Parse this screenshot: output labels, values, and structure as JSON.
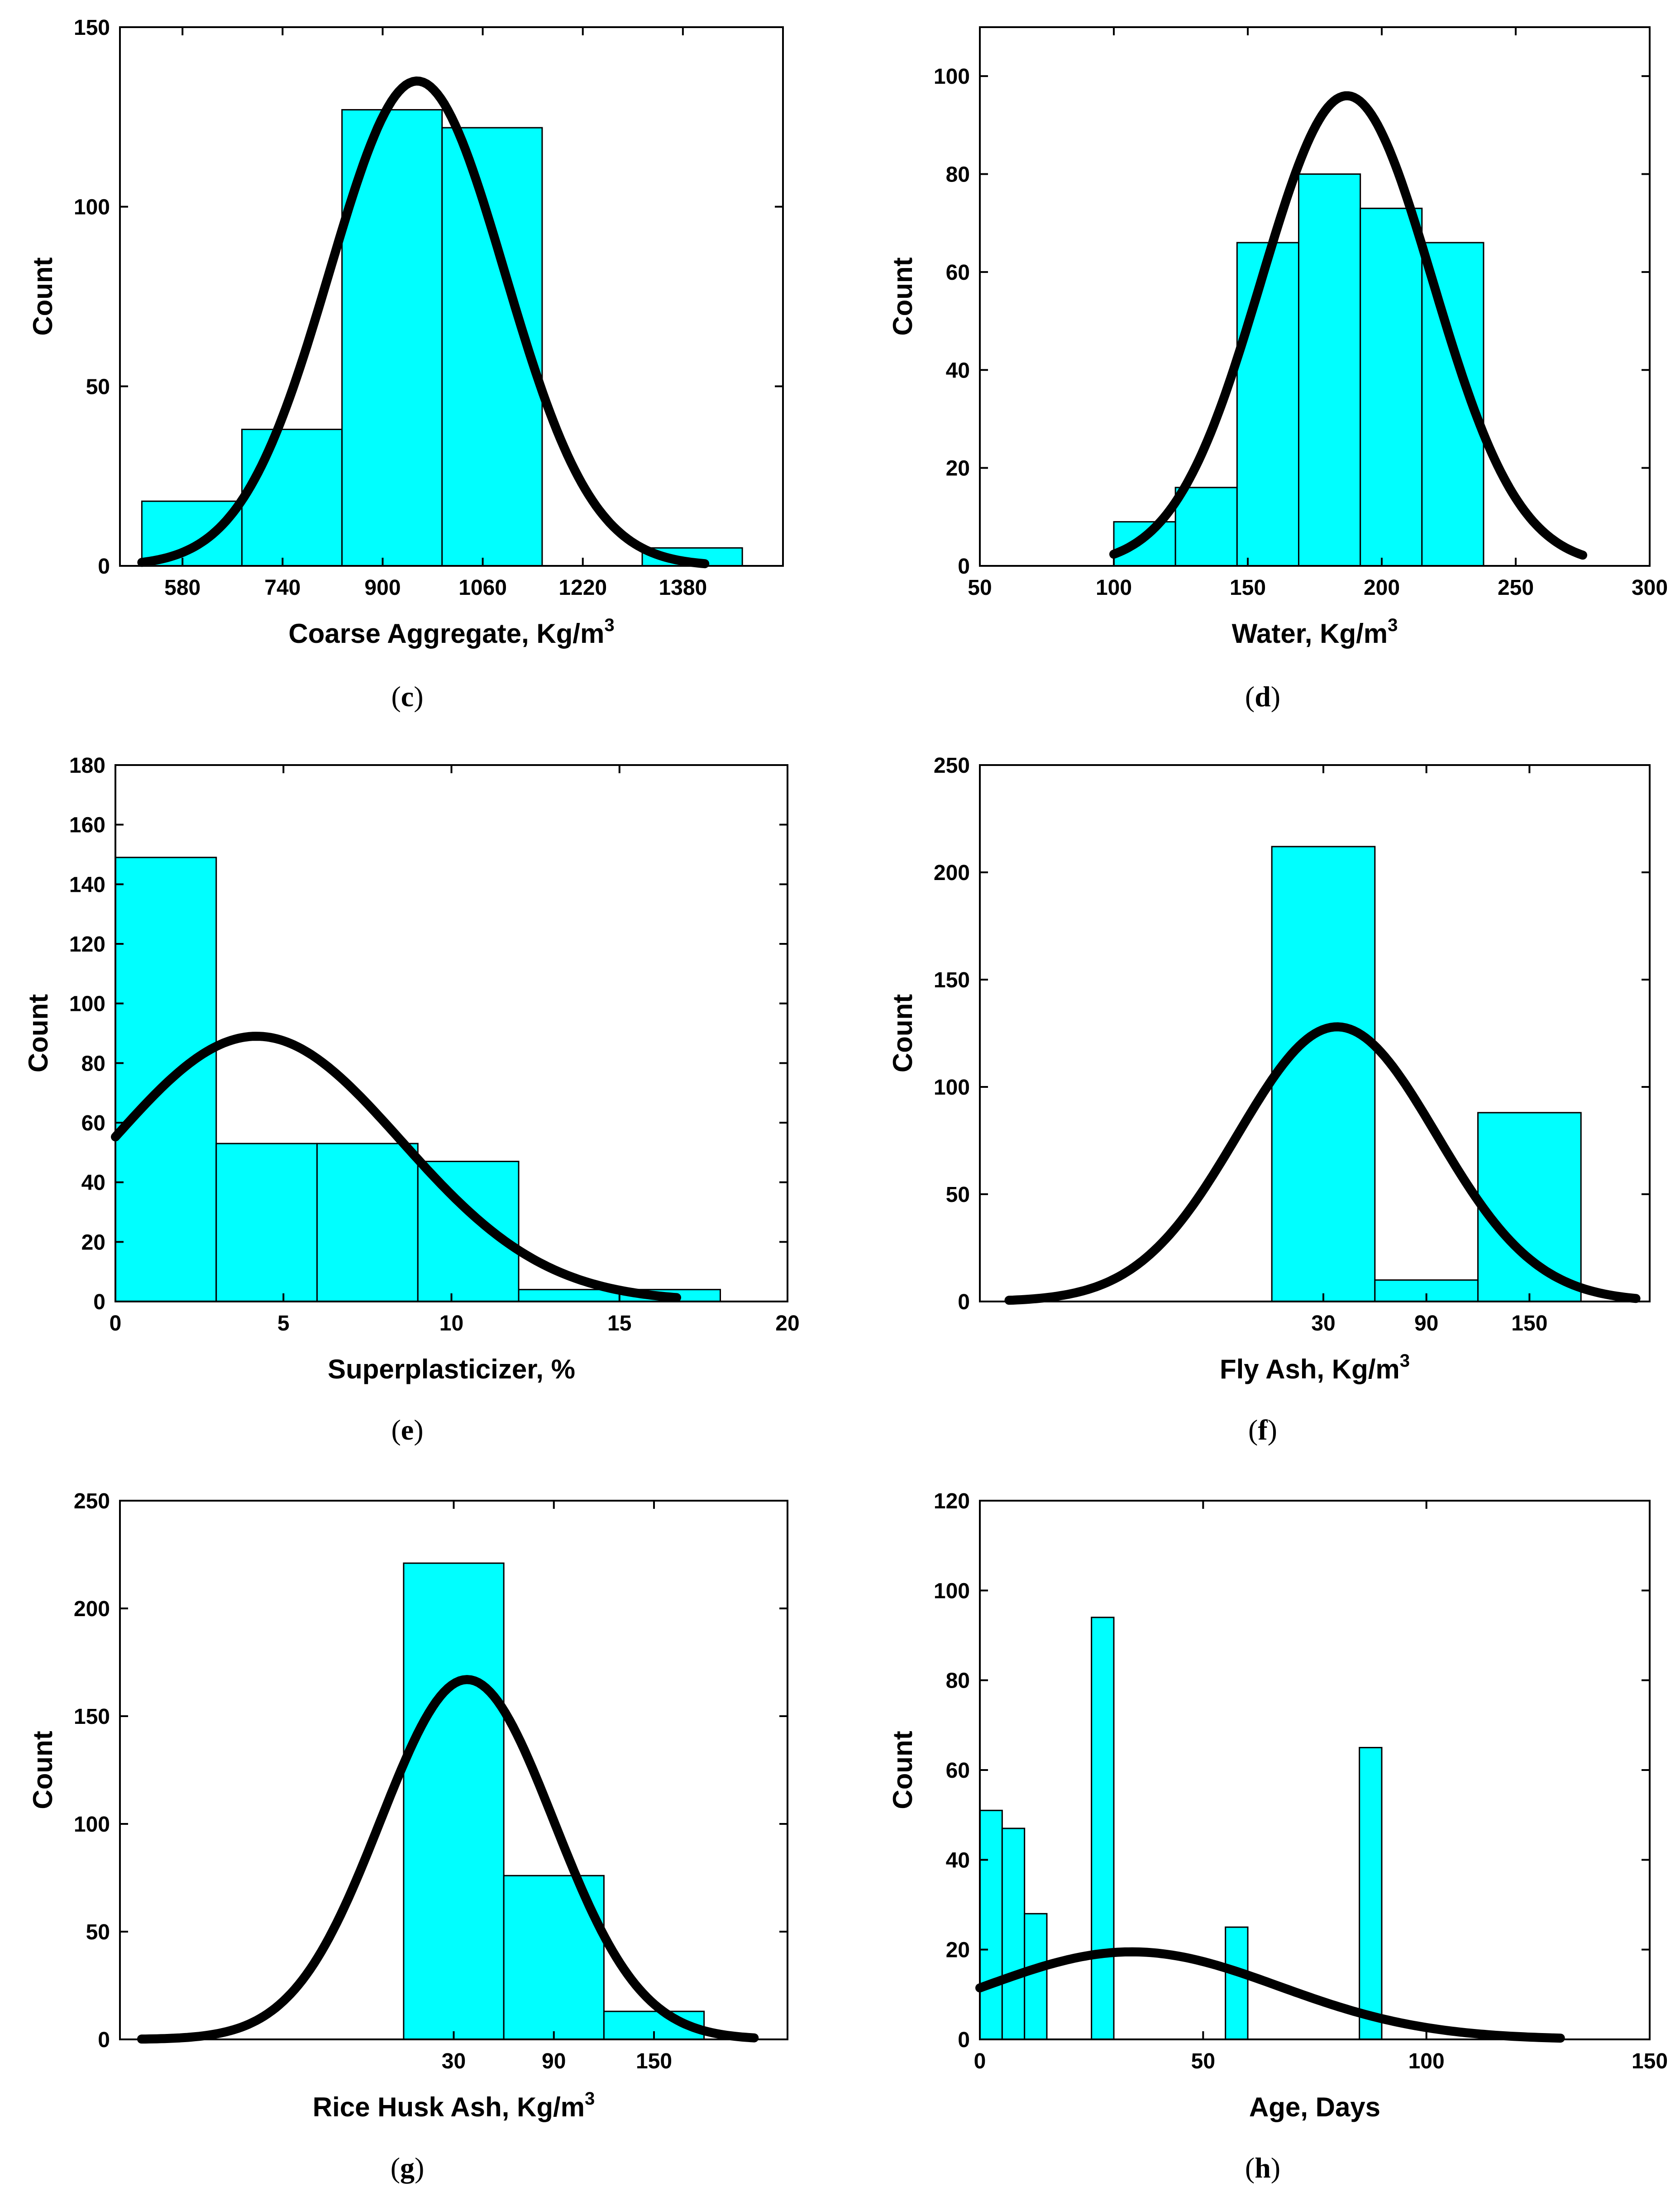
{
  "chart_data": [
    {
      "type": "bar",
      "panel": "c",
      "xlabel": "Coarse Aggregate, Kg/m",
      "xlabel_sup": "3",
      "ylabel": "Count",
      "xlim": [
        480,
        1540
      ],
      "ylim": [
        0,
        150
      ],
      "xticks": [
        580,
        740,
        900,
        1060,
        1220,
        1380
      ],
      "yticks": [
        0,
        50,
        100,
        150
      ],
      "bins": [
        {
          "x0": 515,
          "x1": 675,
          "count": 18
        },
        {
          "x0": 675,
          "x1": 835,
          "count": 38
        },
        {
          "x0": 835,
          "x1": 995,
          "count": 127
        },
        {
          "x0": 995,
          "x1": 1155,
          "count": 122
        },
        {
          "x0": 1155,
          "x1": 1315,
          "count": 0
        },
        {
          "x0": 1315,
          "x1": 1475,
          "count": 5
        }
      ],
      "fit": {
        "mean": 955,
        "std": 140,
        "peak": 135,
        "x_range": [
          515,
          1415
        ]
      }
    },
    {
      "type": "bar",
      "panel": "d",
      "xlabel": "Water, Kg/m",
      "xlabel_sup": "3",
      "ylabel": "Count",
      "xlim": [
        50,
        300
      ],
      "ylim": [
        0,
        110
      ],
      "xticks": [
        50,
        100,
        150,
        200,
        250,
        300
      ],
      "yticks": [
        0,
        20,
        40,
        60,
        80,
        100
      ],
      "bins": [
        {
          "x0": 100,
          "x1": 123,
          "count": 9
        },
        {
          "x0": 123,
          "x1": 146,
          "count": 16
        },
        {
          "x0": 146,
          "x1": 169,
          "count": 66
        },
        {
          "x0": 169,
          "x1": 192,
          "count": 80
        },
        {
          "x0": 192,
          "x1": 215,
          "count": 73
        },
        {
          "x0": 215,
          "x1": 238,
          "count": 66
        }
      ],
      "fit": {
        "mean": 187,
        "std": 32,
        "peak": 96,
        "x_range": [
          100,
          275
        ]
      }
    },
    {
      "type": "bar",
      "panel": "e",
      "xlabel": "Superplasticizer, %",
      "ylabel": "Count",
      "xlim": [
        0,
        20
      ],
      "ylim": [
        0,
        180
      ],
      "xticks": [
        0,
        5,
        10,
        15,
        20
      ],
      "yticks": [
        0,
        20,
        40,
        60,
        80,
        100,
        120,
        140,
        160,
        180
      ],
      "bins": [
        {
          "x0": 0,
          "x1": 3,
          "count": 149
        },
        {
          "x0": 3,
          "x1": 6,
          "count": 53
        },
        {
          "x0": 6,
          "x1": 9,
          "count": 53
        },
        {
          "x0": 9,
          "x1": 12,
          "count": 47
        },
        {
          "x0": 12,
          "x1": 15,
          "count": 4
        },
        {
          "x0": 15,
          "x1": 18,
          "count": 4
        }
      ],
      "fit": {
        "mean": 4.2,
        "std": 4.3,
        "peak": 89,
        "x_range": [
          0,
          16.7
        ]
      }
    },
    {
      "type": "bar",
      "panel": "f",
      "xlabel": "Fly Ash, Kg/m",
      "xlabel_sup": "3",
      "ylabel": "Count",
      "xlim": [
        -170,
        220
      ],
      "ylim": [
        0,
        250
      ],
      "xticks": [
        30,
        90,
        150
      ],
      "yticks": [
        0,
        50,
        100,
        150,
        200,
        250
      ],
      "bins": [
        {
          "x0": 0,
          "x1": 60,
          "count": 212
        },
        {
          "x0": 60,
          "x1": 120,
          "count": 10
        },
        {
          "x0": 120,
          "x1": 180,
          "count": 88
        }
      ],
      "fit": {
        "mean": 38,
        "std": 58,
        "peak": 128,
        "x_range": [
          -153,
          212
        ]
      }
    },
    {
      "type": "bar",
      "panel": "g",
      "xlabel": "Rice Husk Ash, Kg/m",
      "xlabel_sup": "3",
      "ylabel": "Count",
      "xlim": [
        -170,
        230
      ],
      "ylim": [
        0,
        250
      ],
      "xticks": [
        30,
        90,
        150
      ],
      "yticks": [
        0,
        50,
        100,
        150,
        200,
        250
      ],
      "bins": [
        {
          "x0": 0,
          "x1": 60,
          "count": 221
        },
        {
          "x0": 60,
          "x1": 120,
          "count": 76
        },
        {
          "x0": 120,
          "x1": 180,
          "count": 13
        }
      ],
      "fit": {
        "mean": 38,
        "std": 52,
        "peak": 167,
        "x_range": [
          -157,
          210
        ]
      }
    },
    {
      "type": "bar",
      "panel": "h",
      "xlabel": "Age, Days",
      "ylabel": "Count",
      "xlim": [
        0,
        150
      ],
      "ylim": [
        0,
        120
      ],
      "xticks": [
        0,
        50,
        100,
        150
      ],
      "yticks": [
        0,
        20,
        40,
        60,
        80,
        100,
        120
      ],
      "bins": [
        {
          "x0": 0,
          "x1": 5,
          "count": 51
        },
        {
          "x0": 5,
          "x1": 10,
          "count": 47
        },
        {
          "x0": 10,
          "x1": 15,
          "count": 28
        },
        {
          "x0": 25,
          "x1": 30,
          "count": 94
        },
        {
          "x0": 55,
          "x1": 60,
          "count": 25
        },
        {
          "x0": 85,
          "x1": 90,
          "count": 65
        }
      ],
      "fit": {
        "mean": 34,
        "std": 33,
        "peak": 19.5,
        "x_range": [
          0,
          130
        ]
      }
    }
  ],
  "captions": [
    "c",
    "d",
    "e",
    "f",
    "g",
    "h"
  ],
  "colors": {
    "bar_fill": "#00ffff",
    "bar_edge": "#000000",
    "fit_line": "#000000",
    "axes": "#000000"
  }
}
